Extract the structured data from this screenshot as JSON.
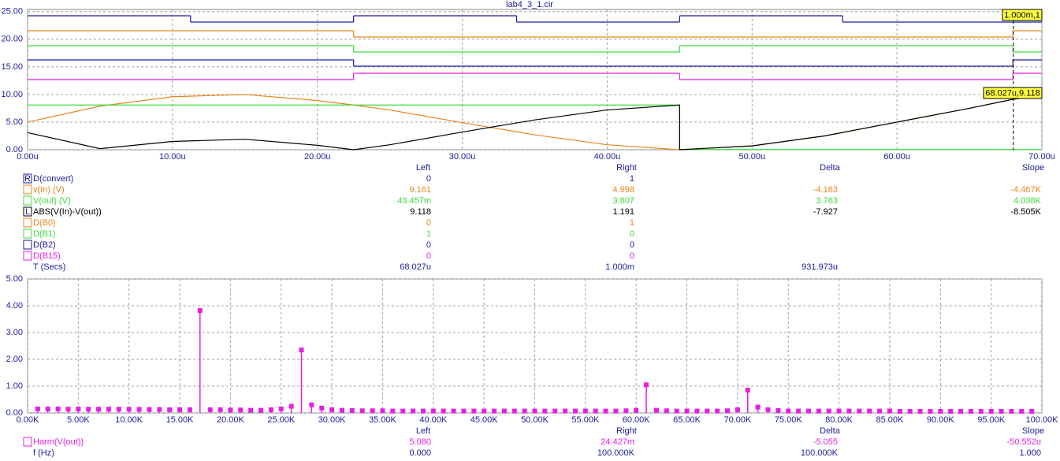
{
  "title": "lab4_3_1.cir",
  "chart_data": [
    {
      "type": "line",
      "xlim": [
        0,
        7e-05
      ],
      "xticks": [
        {
          "value": 0,
          "label": "0.00u"
        },
        {
          "value": 1e-05,
          "label": "10.00u"
        },
        {
          "value": 2e-05,
          "label": "20.00u"
        },
        {
          "value": 3e-05,
          "label": "30.00u"
        },
        {
          "value": 4e-05,
          "label": "40.00u"
        },
        {
          "value": 5e-05,
          "label": "50.00u"
        },
        {
          "value": 6e-05,
          "label": "60.00u"
        },
        {
          "value": 7e-05,
          "label": "70.00u"
        }
      ],
      "ylim": [
        0,
        25.4
      ],
      "yticks": [
        {
          "value": 0,
          "label": "0.00"
        },
        {
          "value": 5,
          "label": "5.00"
        },
        {
          "value": 10,
          "label": "10.00"
        },
        {
          "value": 15,
          "label": "15.00"
        },
        {
          "value": 20,
          "label": "20.00"
        },
        {
          "value": 25,
          "label": "25.00"
        }
      ],
      "grid": true,
      "x": [
        0,
        5e-06,
        1e-05,
        1.5e-05,
        2e-05,
        2.25e-05,
        2.5e-05,
        3e-05,
        3.5e-05,
        4e-05,
        4.5e-05,
        4.5e-05,
        5e-05,
        5.5e-05,
        6e-05,
        6.5e-05,
        6.8e-05,
        7e-05
      ],
      "series": [
        {
          "color": "#e8861a",
          "values": [
            5.0,
            7.9,
            9.6,
            10.0,
            8.9,
            8.1,
            7.2,
            4.9,
            2.7,
            0.9,
            0.0,
            0.0,
            0.7,
            2.5,
            5.0,
            7.5,
            9.16,
            9.8
          ]
        },
        {
          "color": "#3cdc3c",
          "values": [
            8.1,
            8.1,
            8.1,
            8.1,
            8.1,
            8.1,
            8.1,
            8.1,
            8.1,
            8.1,
            8.1,
            0.04,
            0.04,
            0.04,
            0.04,
            0.04,
            0.04,
            0.04
          ]
        },
        {
          "color": "#000000",
          "values": [
            3.1,
            0.2,
            1.5,
            1.9,
            0.8,
            0.0,
            0.9,
            3.2,
            5.4,
            7.2,
            8.1,
            0.0,
            0.7,
            2.5,
            5.0,
            7.5,
            9.12,
            9.8
          ]
        }
      ],
      "digital_series": [
        {
          "color": "#1c1c9c",
          "x": [
            0,
            1.125e-05,
            2.25e-05,
            3.375e-05,
            4.5e-05,
            5.625e-05
          ],
          "values": [
            1,
            0,
            1,
            0,
            1,
            0
          ]
        },
        {
          "color": "#e8861a",
          "x": [
            0,
            2.25e-05,
            6.8e-05
          ],
          "values": [
            1,
            0,
            1
          ]
        },
        {
          "color": "#3cdc3c",
          "x": [
            0,
            2.25e-05,
            4.5e-05,
            6.8e-05
          ],
          "values": [
            1,
            0,
            1,
            0
          ]
        },
        {
          "color": "#1c1c9c",
          "x": [
            0,
            2.25e-05,
            6.8e-05
          ],
          "values": [
            1,
            0,
            1
          ]
        },
        {
          "color": "#e61ee6",
          "x": [
            0,
            2.25e-05,
            4.5e-05,
            6.8e-05
          ],
          "values": [
            0,
            1,
            0,
            1
          ]
        }
      ],
      "cursor_x": 6.8027e-05,
      "annotations": [
        "1.000m,1",
        "68.027u,9.118"
      ]
    },
    {
      "type": "stem",
      "xlim": [
        0,
        100000
      ],
      "xticks": [
        {
          "value": 0,
          "label": "0.00K"
        },
        {
          "value": 5000,
          "label": "5.00K"
        },
        {
          "value": 10000,
          "label": "10.00K"
        },
        {
          "value": 15000,
          "label": "15.00K"
        },
        {
          "value": 20000,
          "label": "20.00K"
        },
        {
          "value": 25000,
          "label": "25.00K"
        },
        {
          "value": 30000,
          "label": "30.00K"
        },
        {
          "value": 35000,
          "label": "35.00K"
        },
        {
          "value": 40000,
          "label": "40.00K"
        },
        {
          "value": 45000,
          "label": "45.00K"
        },
        {
          "value": 50000,
          "label": "50.00K"
        },
        {
          "value": 55000,
          "label": "55.00K"
        },
        {
          "value": 60000,
          "label": "60.00K"
        },
        {
          "value": 65000,
          "label": "65.00K"
        },
        {
          "value": 70000,
          "label": "70.00K"
        },
        {
          "value": 75000,
          "label": "75.00K"
        },
        {
          "value": 80000,
          "label": "80.00K"
        },
        {
          "value": 85000,
          "label": "85.00K"
        },
        {
          "value": 90000,
          "label": "90.00K"
        },
        {
          "value": 95000,
          "label": "95.00K"
        },
        {
          "value": 100000,
          "label": "100.00K"
        }
      ],
      "ylim": [
        0,
        5
      ],
      "yticks": [
        {
          "value": 0,
          "label": "0.00"
        },
        {
          "value": 1,
          "label": "1.00"
        },
        {
          "value": 2,
          "label": "2.00"
        },
        {
          "value": 3,
          "label": "3.00"
        },
        {
          "value": 4,
          "label": "4.00"
        },
        {
          "value": 5,
          "label": "5.00"
        }
      ],
      "grid": true,
      "color": "#e61ee6",
      "x": [
        1000,
        2000,
        3000,
        4000,
        5000,
        6000,
        7000,
        8000,
        9000,
        10000,
        11000,
        12000,
        13000,
        14000,
        15000,
        16000,
        17000,
        18000,
        19000,
        20000,
        21000,
        22000,
        23000,
        24000,
        25000,
        26000,
        27000,
        28000,
        29000,
        30000,
        31000,
        32000,
        33000,
        34000,
        35000,
        36000,
        37000,
        38000,
        39000,
        40000,
        41000,
        42000,
        43000,
        44000,
        45000,
        46000,
        47000,
        48000,
        49000,
        50000,
        51000,
        52000,
        53000,
        54000,
        55000,
        56000,
        57000,
        58000,
        59000,
        60000,
        61000,
        62000,
        63000,
        64000,
        65000,
        66000,
        67000,
        68000,
        69000,
        70000,
        71000,
        72000,
        73000,
        74000,
        75000,
        76000,
        77000,
        78000,
        79000,
        80000,
        81000,
        82000,
        83000,
        84000,
        85000,
        86000,
        87000,
        88000,
        89000,
        90000,
        91000,
        92000,
        93000,
        94000,
        95000,
        96000,
        97000,
        98000,
        99000
      ],
      "values": [
        0.15,
        0.15,
        0.15,
        0.14,
        0.15,
        0.14,
        0.14,
        0.14,
        0.14,
        0.14,
        0.13,
        0.13,
        0.13,
        0.12,
        0.12,
        0.12,
        3.82,
        0.12,
        0.12,
        0.11,
        0.11,
        0.1,
        0.1,
        0.12,
        0.15,
        0.25,
        2.35,
        0.3,
        0.18,
        0.12,
        0.1,
        0.09,
        0.08,
        0.08,
        0.08,
        0.07,
        0.07,
        0.07,
        0.07,
        0.07,
        0.07,
        0.07,
        0.07,
        0.07,
        0.07,
        0.07,
        0.07,
        0.07,
        0.07,
        0.07,
        0.07,
        0.07,
        0.07,
        0.07,
        0.07,
        0.07,
        0.07,
        0.07,
        0.08,
        0.1,
        1.05,
        0.1,
        0.08,
        0.07,
        0.07,
        0.07,
        0.07,
        0.07,
        0.08,
        0.12,
        0.85,
        0.22,
        0.12,
        0.09,
        0.07,
        0.07,
        0.07,
        0.07,
        0.07,
        0.07,
        0.07,
        0.07,
        0.07,
        0.07,
        0.07,
        0.06,
        0.06,
        0.06,
        0.06,
        0.06,
        0.06,
        0.06,
        0.06,
        0.06,
        0.06,
        0.06,
        0.06,
        0.06,
        0.06
      ]
    }
  ],
  "cursor_tables": [
    {
      "columns": [
        "Left",
        "Right",
        "Delta",
        "Slope"
      ],
      "rows": [
        {
          "marker": "R",
          "color": "#1c1c9c",
          "label": "D(convert)",
          "cells": [
            "0",
            "1"
          ]
        },
        {
          "color": "#e8861a",
          "label": "v(In) (V)",
          "cells": [
            "9.161",
            "4.998",
            "-4.163",
            "-4.467K"
          ]
        },
        {
          "color": "#3cdc3c",
          "label": "V(out) (V)",
          "cells": [
            "43.457m",
            "3.807",
            "3.763",
            "4.038K"
          ]
        },
        {
          "marker": "L",
          "color": "#000000",
          "label": "ABS(V(In)-V(out))",
          "cells": [
            "9.118",
            "1.191",
            "-7.927",
            "-8.505K"
          ]
        },
        {
          "color": "#e8861a",
          "label": "D(B0)",
          "cells": [
            "0",
            "1"
          ]
        },
        {
          "color": "#3cdc3c",
          "label": "D(B1)",
          "cells": [
            "1",
            "0"
          ]
        },
        {
          "color": "#1c1c9c",
          "label": "D(B2)",
          "cells": [
            "0",
            "0"
          ]
        },
        {
          "color": "#e61ee6",
          "label": "D(B15)",
          "cells": [
            "0",
            "0"
          ]
        },
        {
          "label": "T (Secs)",
          "cells": [
            "68.027u",
            "1.000m",
            "931.973u"
          ]
        }
      ]
    },
    {
      "columns": [
        "Left",
        "Right",
        "Delta",
        "Slope"
      ],
      "rows": [
        {
          "color": "#e61ee6",
          "label": "Harm(V(out))",
          "cells": [
            "5.080",
            "24.427m",
            "-5.055",
            "-50.552u"
          ]
        },
        {
          "label": "f (Hz)",
          "cells": [
            "0.000",
            "100.000K",
            "100.000K",
            "1.000"
          ]
        }
      ]
    }
  ]
}
